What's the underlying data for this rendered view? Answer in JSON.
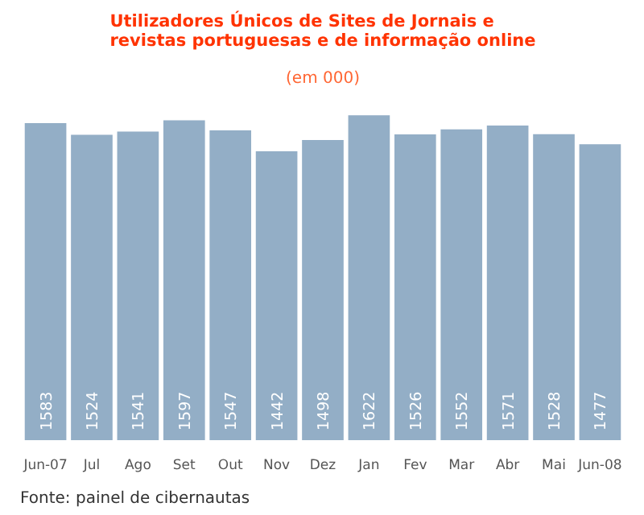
{
  "chart_data": {
    "type": "bar",
    "title": "Utilizadores Únicos de Sites de Jornais e\nrevistas portuguesas e de informação online",
    "subtitle": "(em 000)",
    "categories": [
      "Jun-07",
      "Jul",
      "Ago",
      "Set",
      "Out",
      "Nov",
      "Dez",
      "Jan",
      "Fev",
      "Mar",
      "Abr",
      "Mai",
      "Jun-08"
    ],
    "values": [
      1583,
      1524,
      1541,
      1597,
      1547,
      1442,
      1498,
      1622,
      1526,
      1552,
      1571,
      1528,
      1477
    ],
    "color": "#93aec6",
    "data_labels": true,
    "grid": false,
    "annotations": [
      "Fonte: painel de cibernautas"
    ]
  }
}
